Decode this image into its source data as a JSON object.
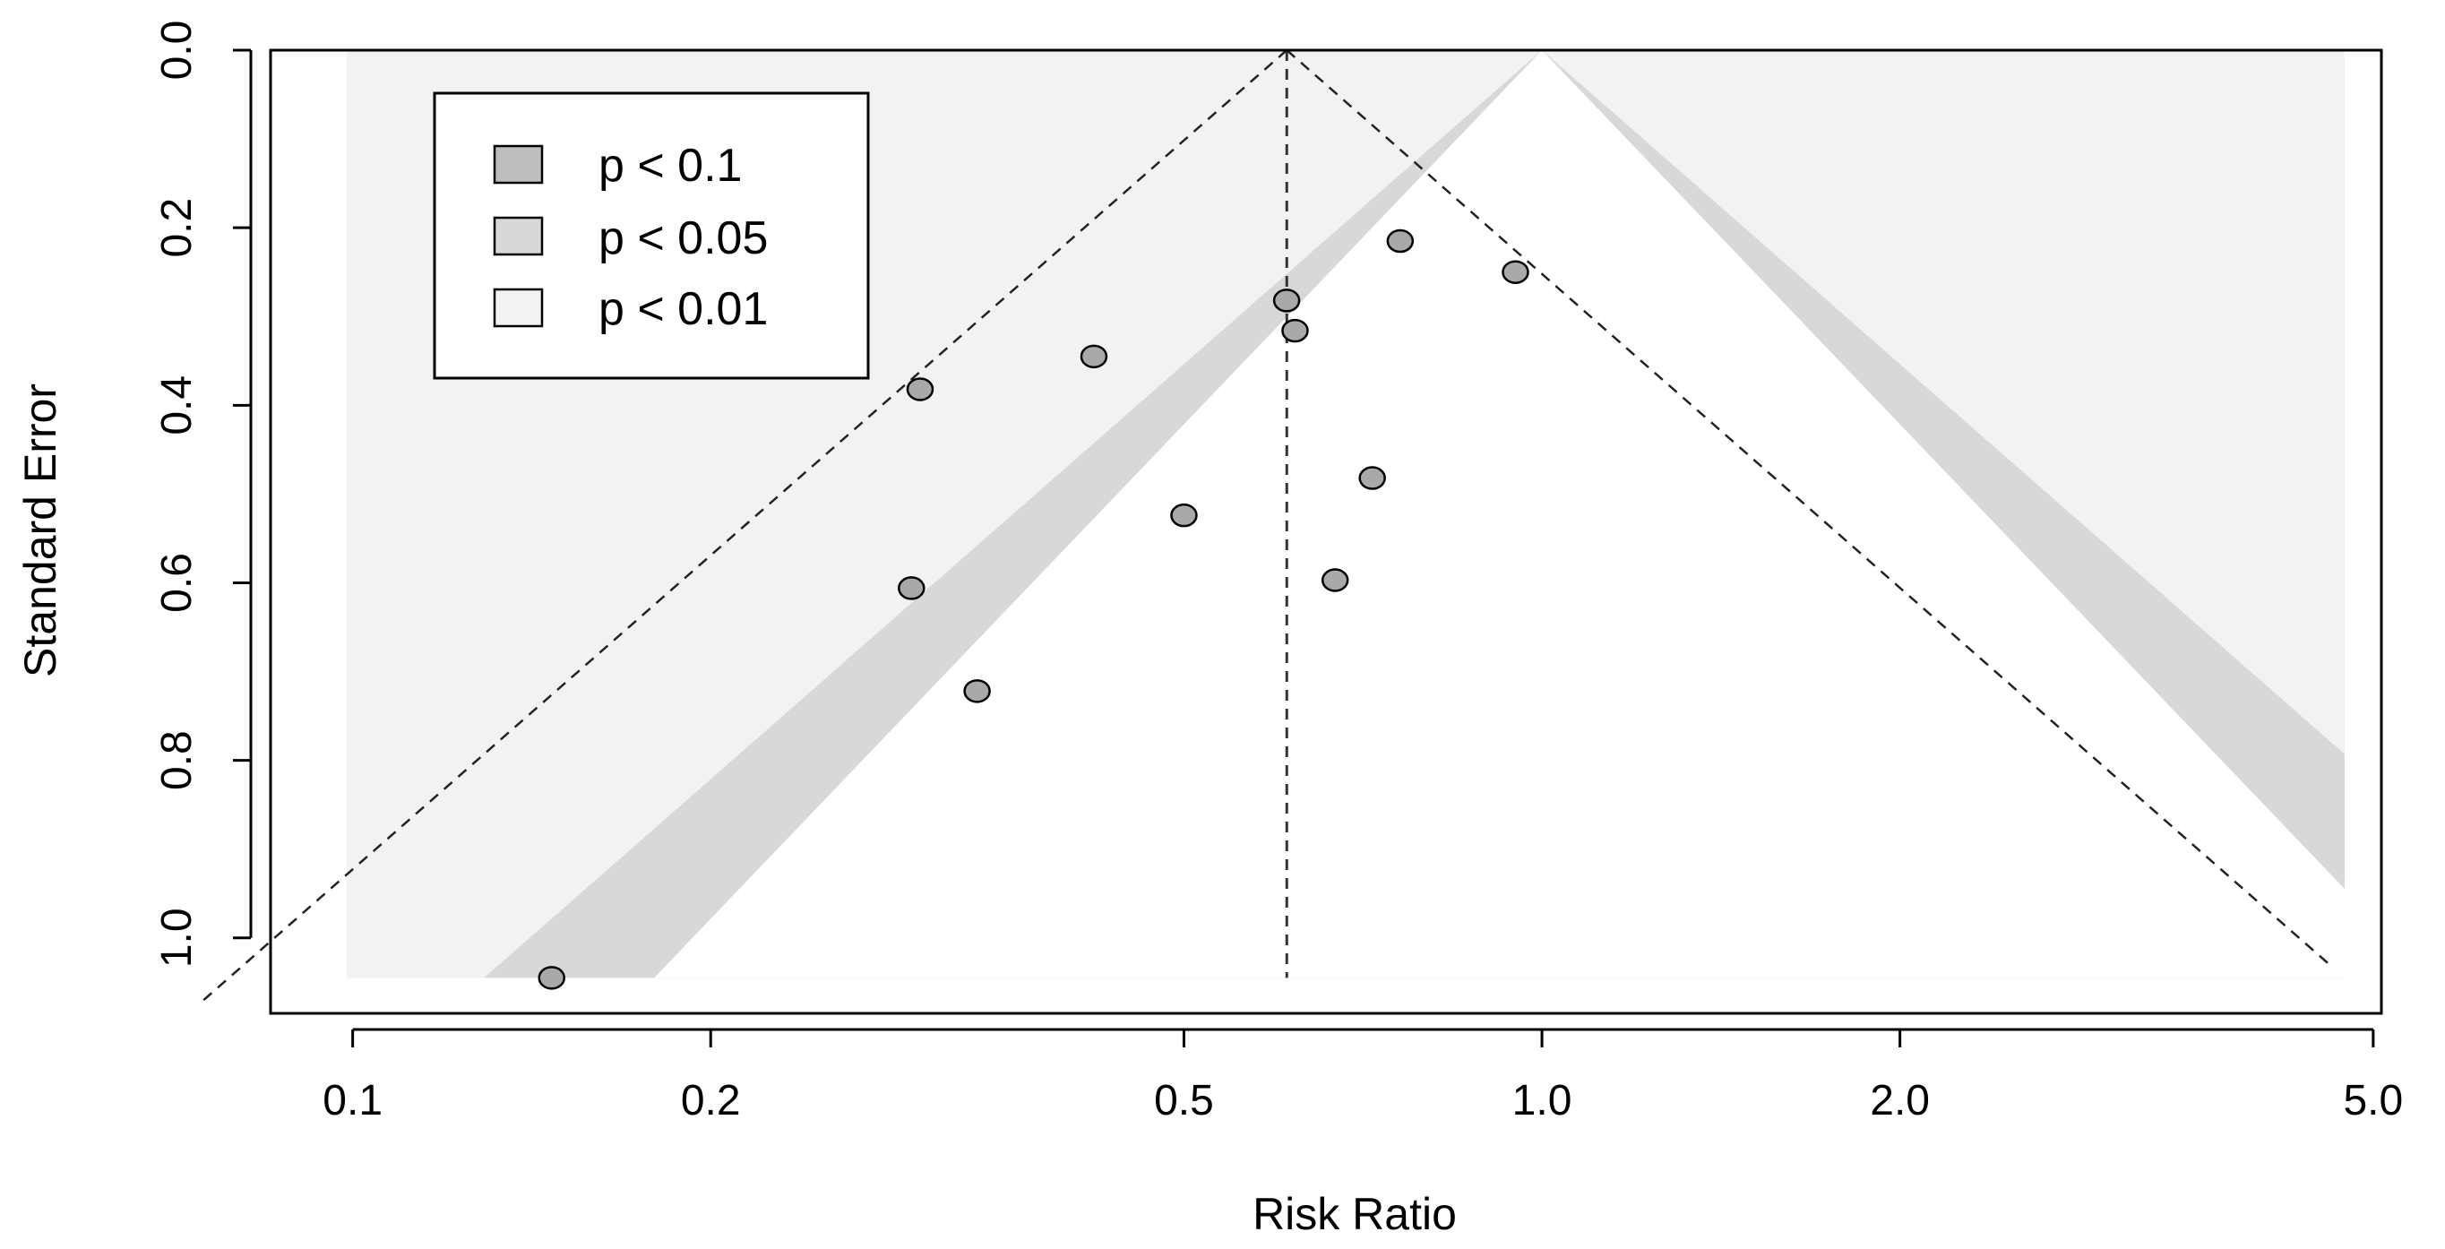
{
  "chart_data": {
    "type": "scatter",
    "subtype": "contour-enhanced funnel plot",
    "title": "",
    "xlabel": "Risk Ratio",
    "ylabel": "Standard Error",
    "x_scale": "log",
    "x_range": [
      0.0853,
      5.08
    ],
    "x_ticks": [
      0.1,
      0.2,
      0.5,
      1.0,
      2.0,
      5.0
    ],
    "x_tick_labels": [
      "0.1",
      "0.2",
      "0.5",
      "1.0",
      "2.0",
      "5.0"
    ],
    "y_reversed": true,
    "y_range": [
      0.0,
      1.085
    ],
    "y_ticks": [
      0.0,
      0.2,
      0.4,
      0.6,
      0.8,
      1.0
    ],
    "y_tick_labels": [
      "0.0",
      "0.2",
      "0.4",
      "0.6",
      "0.8",
      "1.0"
    ],
    "pooled_estimate": 0.61,
    "max_se": 1.045,
    "contours": [
      {
        "label": "p < 0.1",
        "z": 1.645,
        "color": "#bebebe"
      },
      {
        "label": "p < 0.05",
        "z": 1.96,
        "color": "#d8d8d8"
      },
      {
        "label": "p < 0.01",
        "z": 2.576,
        "color": "#f2f2f2"
      }
    ],
    "reference_lines": {
      "center_log_rr": -0.494,
      "funnel_z": 1.96
    },
    "points": [
      {
        "rr": 0.76,
        "se": 0.215
      },
      {
        "rr": 0.95,
        "se": 0.25
      },
      {
        "rr": 0.61,
        "se": 0.282
      },
      {
        "rr": 0.62,
        "se": 0.316
      },
      {
        "rr": 0.42,
        "se": 0.345
      },
      {
        "rr": 0.3,
        "se": 0.382
      },
      {
        "rr": 0.72,
        "se": 0.482
      },
      {
        "rr": 0.5,
        "se": 0.524
      },
      {
        "rr": 0.67,
        "se": 0.597
      },
      {
        "rr": 0.295,
        "se": 0.606
      },
      {
        "rr": 0.335,
        "se": 0.722
      },
      {
        "rr": 0.147,
        "se": 1.045
      }
    ],
    "legend": {
      "position": "top-left",
      "entries": [
        "p < 0.1",
        "p < 0.05",
        "p < 0.01"
      ]
    }
  }
}
